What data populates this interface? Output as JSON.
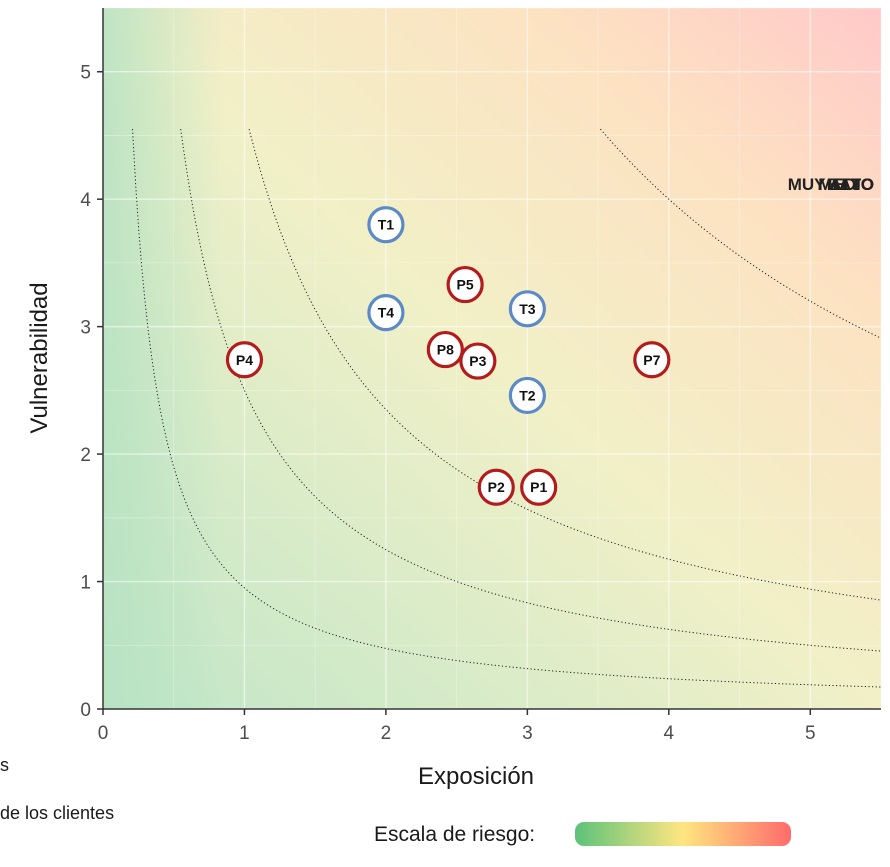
{
  "chart_data": {
    "type": "scatter",
    "xlabel": "Exposición",
    "ylabel": "Vulnerabilidad",
    "xlim": [
      0,
      5.5
    ],
    "ylim": [
      0,
      5.5
    ],
    "x_ticks": [
      0,
      1,
      2,
      3,
      4,
      5
    ],
    "y_ticks": [
      0,
      1,
      2,
      3,
      4,
      5
    ],
    "grid": true,
    "background": "risk gradient from green (bottom-left) to red (top-right)",
    "risk_curves": [
      {
        "k": 0.95,
        "label": "BAJO"
      },
      {
        "k": 2.5,
        "label": "MEDIO"
      },
      {
        "k": 4.7,
        "label": "ALTO"
      },
      {
        "k": 16,
        "label": "MUY ALTO"
      }
    ],
    "series": [
      {
        "color": "#b31c1c",
        "points": [
          {
            "label": "P1",
            "x": 3.08,
            "y": 1.74
          },
          {
            "label": "P2",
            "x": 2.78,
            "y": 1.74
          },
          {
            "label": "P3",
            "x": 2.65,
            "y": 2.73
          },
          {
            "label": "P4",
            "x": 1.0,
            "y": 2.74
          },
          {
            "label": "P5",
            "x": 2.56,
            "y": 3.33
          },
          {
            "label": "P7",
            "x": 3.88,
            "y": 2.74
          },
          {
            "label": "P8",
            "x": 2.42,
            "y": 2.82
          }
        ]
      },
      {
        "color": "#5b8ac6",
        "points": [
          {
            "label": "T1",
            "x": 2.0,
            "y": 3.8
          },
          {
            "label": "T2",
            "x": 3.0,
            "y": 2.46
          },
          {
            "label": "T3",
            "x": 3.0,
            "y": 3.14
          },
          {
            "label": "T4",
            "x": 2.0,
            "y": 3.11
          }
        ]
      }
    ],
    "legend": {
      "title": "Escala de riesgo:",
      "colors": [
        "#5cc27a",
        "#ffe680",
        "#ff6b6b"
      ]
    }
  },
  "captions": {
    "caption_1": "s",
    "caption_2": "de los clientes"
  }
}
